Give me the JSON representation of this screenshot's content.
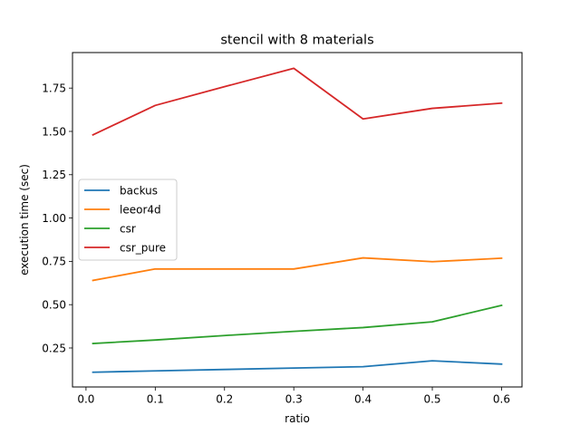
{
  "chart_data": {
    "type": "line",
    "title": "stencil with 8 materials",
    "xlabel": "ratio",
    "ylabel": "execution time (sec)",
    "x": [
      0.01,
      0.1,
      0.2,
      0.3,
      0.4,
      0.5,
      0.6
    ],
    "xlim": [
      -0.0195,
      0.6295
    ],
    "ylim": [
      0.025,
      1.955
    ],
    "xticks": [
      0.0,
      0.1,
      0.2,
      0.3,
      0.4,
      0.5,
      0.6
    ],
    "xtick_labels": [
      "0.0",
      "0.1",
      "0.2",
      "0.3",
      "0.4",
      "0.5",
      "0.6"
    ],
    "yticks": [
      0.25,
      0.5,
      0.75,
      1.0,
      1.25,
      1.5,
      1.75
    ],
    "ytick_labels": [
      "0.25",
      "0.50",
      "0.75",
      "1.00",
      "1.25",
      "1.50",
      "1.75"
    ],
    "grid": false,
    "legend_position": "center-left",
    "series": [
      {
        "name": "backus",
        "color": "#1f77b4",
        "values": [
          0.11,
          0.118,
          0.126,
          0.134,
          0.142,
          0.176,
          0.157
        ]
      },
      {
        "name": "leeor4d",
        "color": "#ff7f0e",
        "values": [
          0.64,
          0.706,
          0.706,
          0.706,
          0.77,
          0.748,
          0.768
        ]
      },
      {
        "name": "csr",
        "color": "#2ca02c",
        "values": [
          0.276,
          0.296,
          0.322,
          0.346,
          0.368,
          0.401,
          0.496
        ]
      },
      {
        "name": "csr_pure",
        "color": "#d62728",
        "values": [
          1.48,
          1.65,
          1.758,
          1.864,
          1.572,
          1.633,
          1.663
        ]
      }
    ]
  }
}
